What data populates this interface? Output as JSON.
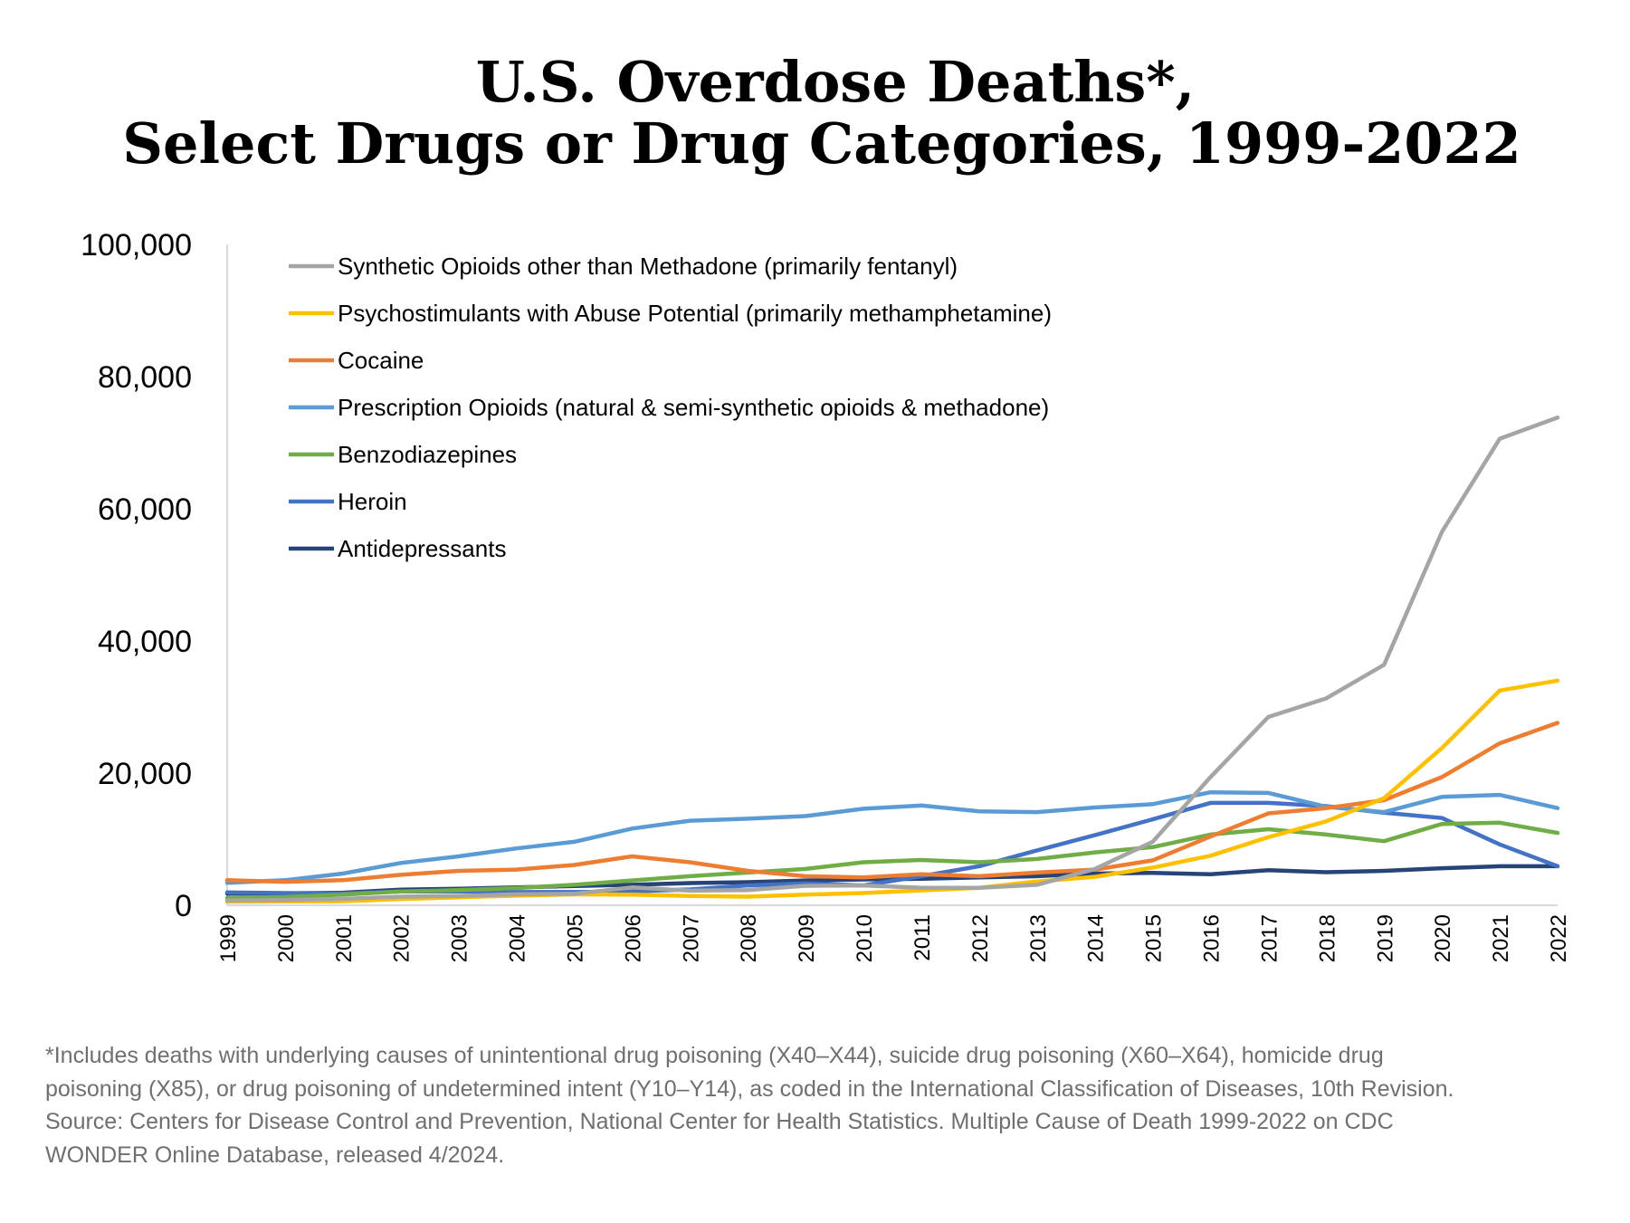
{
  "chart_data": {
    "type": "line",
    "title_line1": "U.S. Overdose Deaths*,",
    "title_line2": "Select Drugs or Drug Categories, 1999-2022",
    "xlabel": "",
    "ylabel": "",
    "ylim": [
      0,
      100000
    ],
    "yticks": [
      "0",
      "20,000",
      "40,000",
      "60,000",
      "80,000",
      "100,000"
    ],
    "categories": [
      "1999",
      "2000",
      "2001",
      "2002",
      "2003",
      "2004",
      "2005",
      "2006",
      "2007",
      "2008",
      "2009",
      "2010",
      "2011",
      "2012",
      "2013",
      "2014",
      "2015",
      "2016",
      "2017",
      "2018",
      "2019",
      "2020",
      "2021",
      "2022"
    ],
    "legend_position": "top-left",
    "grid": false,
    "series": [
      {
        "name": "Synthetic Opioids other than Methadone (primarily fentanyl)",
        "color": "#a5a5a5",
        "values": [
          730,
          780,
          960,
          1300,
          1400,
          1660,
          1740,
          2700,
          2200,
          2300,
          2950,
          3000,
          2650,
          2630,
          3100,
          5500,
          9600,
          19400,
          28500,
          31300,
          36400,
          56500,
          70600,
          73800
        ]
      },
      {
        "name": "Psychostimulants with Abuse Potential (primarily methamphetamine)",
        "color": "#ffc000",
        "values": [
          550,
          580,
          600,
          950,
          1200,
          1450,
          1650,
          1600,
          1400,
          1300,
          1600,
          1850,
          2250,
          2650,
          3600,
          4300,
          5700,
          7500,
          10300,
          12700,
          16200,
          23800,
          32500,
          34000
        ]
      },
      {
        "name": "Cocaine",
        "color": "#ed7d31",
        "values": [
          3800,
          3550,
          3800,
          4600,
          5200,
          5400,
          6100,
          7400,
          6500,
          5200,
          4400,
          4200,
          4700,
          4400,
          4950,
          5400,
          6800,
          10400,
          13900,
          14700,
          15900,
          19400,
          24500,
          27600
        ]
      },
      {
        "name": "Prescription Opioids (natural & semi-synthetic opioids & methadone)",
        "color": "#5b9bd5",
        "values": [
          3400,
          3800,
          4800,
          6400,
          7400,
          8600,
          9600,
          11600,
          12800,
          13100,
          13500,
          14600,
          15100,
          14200,
          14100,
          14800,
          15300,
          17100,
          17000,
          14900,
          14100,
          16400,
          16700,
          14700
        ]
      },
      {
        "name": "Benzodiazepines",
        "color": "#70ad47",
        "values": [
          1100,
          1250,
          1600,
          2100,
          2300,
          2600,
          3100,
          3750,
          4400,
          4950,
          5500,
          6500,
          6850,
          6500,
          7000,
          8000,
          8800,
          10700,
          11500,
          10700,
          9700,
          12300,
          12500,
          10950
        ]
      },
      {
        "name": "Heroin",
        "color": "#4472c4",
        "values": [
          1950,
          1850,
          1800,
          2100,
          2100,
          2000,
          2000,
          2100,
          2400,
          3000,
          3300,
          3000,
          4400,
          5900,
          8300,
          10600,
          13000,
          15500,
          15500,
          15000,
          14000,
          13200,
          9200,
          5900
        ]
      },
      {
        "name": "Antidepressants",
        "color": "#264478",
        "values": [
          1750,
          1800,
          1900,
          2350,
          2500,
          2700,
          2900,
          3100,
          3350,
          3500,
          3750,
          3900,
          4000,
          4200,
          4400,
          4800,
          4900,
          4700,
          5300,
          5000,
          5200,
          5600,
          5900,
          5900
        ]
      }
    ]
  },
  "footnote": {
    "line1": "*Includes deaths with underlying causes of unintentional drug poisoning (X40–X44), suicide drug poisoning (X60–X64), homicide drug",
    "line2": "poisoning (X85), or drug poisoning of undetermined intent (Y10–Y14), as coded in the International Classification of Diseases, 10th Revision.",
    "line3": "Source: Centers for Disease Control and Prevention, National Center for Health Statistics. Multiple Cause of Death 1999-2022 on CDC",
    "line4": "WONDER Online Database, released 4/2024."
  }
}
